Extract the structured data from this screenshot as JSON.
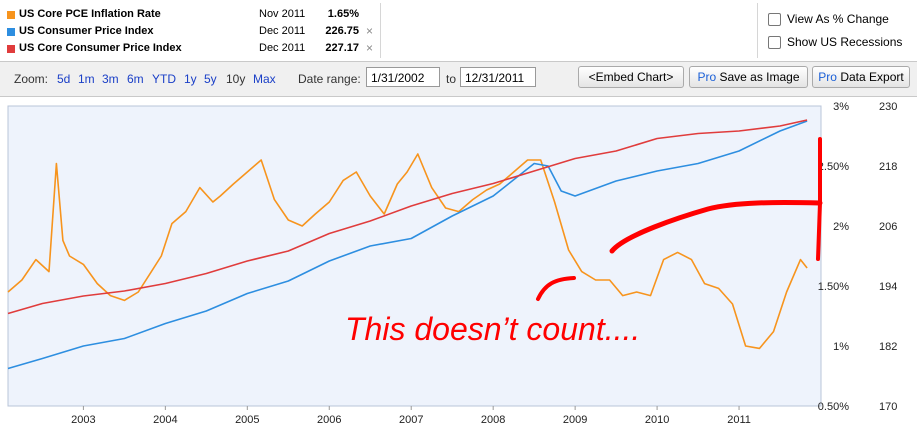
{
  "legend": {
    "series": [
      {
        "name": "US Core PCE Inflation Rate",
        "date": "Nov 2011",
        "value": "1.65%",
        "color": "#f7941d",
        "removable": false
      },
      {
        "name": "US Consumer Price Index",
        "date": "Dec 2011",
        "value": "226.75",
        "color": "#2d8ee0",
        "removable": true
      },
      {
        "name": "US Core Consumer Price Index",
        "date": "Dec 2011",
        "value": "227.17",
        "color": "#e03c3c",
        "removable": true
      }
    ],
    "close_glyph": "×"
  },
  "options": {
    "view_as_percent": "View As % Change",
    "show_recessions": "Show US Recessions"
  },
  "toolbar": {
    "zoom_label": "Zoom:",
    "zoom_options": [
      "5d",
      "1m",
      "3m",
      "6m",
      "YTD",
      "1y",
      "5y",
      "10y",
      "Max"
    ],
    "zoom_active": "10y",
    "date_range_label": "Date range:",
    "start_date": "1/31/2002",
    "to_label": "to",
    "end_date": "12/31/2011",
    "embed_button": "<Embed Chart>",
    "save_pro": "Pro",
    "save_label": "Save as Image",
    "export_pro": "Pro",
    "export_label": "Data Export"
  },
  "annotation": {
    "text": "This doesn’t count....",
    "color": "#ff0000"
  },
  "chart_data": {
    "type": "line",
    "x_tick_labels": [
      "2003",
      "2004",
      "2005",
      "2006",
      "2007",
      "2008",
      "2009",
      "2010",
      "2011"
    ],
    "xlim": [
      2002.08,
      2012.0
    ],
    "y_left": {
      "ticks": [
        "3%",
        "2.50%",
        "2%",
        "1.50%",
        "1%",
        "0.50%"
      ],
      "ylim": [
        0.5,
        3.0
      ]
    },
    "y_right": {
      "ticks": [
        "230",
        "218",
        "206",
        "194",
        "182",
        "170"
      ],
      "ylim": [
        170,
        230
      ]
    },
    "grid": false,
    "background": "#eef3fc",
    "series": [
      {
        "name": "US Core PCE Inflation Rate",
        "axis": "left",
        "color": "#f7941d",
        "x": [
          2002.08,
          2002.25,
          2002.42,
          2002.58,
          2002.67,
          2002.75,
          2002.83,
          2003.0,
          2003.17,
          2003.33,
          2003.5,
          2003.67,
          2003.83,
          2003.95,
          2004.08,
          2004.25,
          2004.42,
          2004.58,
          2004.67,
          2004.83,
          2005.0,
          2005.17,
          2005.33,
          2005.5,
          2005.67,
          2005.83,
          2006.0,
          2006.17,
          2006.33,
          2006.5,
          2006.67,
          2006.83,
          2006.95,
          2007.08,
          2007.25,
          2007.42,
          2007.58,
          2007.75,
          2007.92,
          2008.08,
          2008.25,
          2008.42,
          2008.58,
          2008.75,
          2008.92,
          2009.08,
          2009.25,
          2009.42,
          2009.58,
          2009.75,
          2009.92,
          2010.08,
          2010.25,
          2010.42,
          2010.58,
          2010.75,
          2010.92,
          2011.08,
          2011.25,
          2011.42,
          2011.58,
          2011.75,
          2011.83
        ],
        "values": [
          1.45,
          1.55,
          1.72,
          1.62,
          2.52,
          1.88,
          1.75,
          1.68,
          1.52,
          1.42,
          1.38,
          1.45,
          1.62,
          1.75,
          2.02,
          2.12,
          2.32,
          2.2,
          2.25,
          2.35,
          2.45,
          2.55,
          2.22,
          2.05,
          2.0,
          2.1,
          2.2,
          2.38,
          2.45,
          2.25,
          2.1,
          2.35,
          2.45,
          2.6,
          2.32,
          2.15,
          2.12,
          2.22,
          2.3,
          2.35,
          2.45,
          2.55,
          2.55,
          2.2,
          1.8,
          1.62,
          1.55,
          1.55,
          1.42,
          1.45,
          1.42,
          1.72,
          1.78,
          1.72,
          1.52,
          1.48,
          1.35,
          1.0,
          0.98,
          1.12,
          1.45,
          1.72,
          1.65
        ]
      },
      {
        "name": "US Consumer Price Index",
        "axis": "right",
        "color": "#2d8ee0",
        "x": [
          2002.08,
          2002.5,
          2003.0,
          2003.5,
          2004.0,
          2004.5,
          2005.0,
          2005.5,
          2006.0,
          2006.5,
          2007.0,
          2007.5,
          2008.0,
          2008.5,
          2008.67,
          2008.83,
          2009.0,
          2009.5,
          2010.0,
          2010.5,
          2011.0,
          2011.5,
          2011.83
        ],
        "values": [
          177.5,
          179.5,
          182.0,
          183.5,
          186.5,
          189.0,
          192.5,
          195.0,
          199.0,
          202.0,
          203.5,
          208.0,
          212.0,
          218.5,
          218.0,
          213.0,
          212.0,
          215.0,
          217.0,
          218.5,
          221.0,
          225.0,
          227.0
        ]
      },
      {
        "name": "US Core Consumer Price Index",
        "axis": "right",
        "color": "#e03c3c",
        "x": [
          2002.08,
          2002.5,
          2003.0,
          2003.5,
          2004.0,
          2004.5,
          2005.0,
          2005.5,
          2006.0,
          2006.5,
          2007.0,
          2007.5,
          2008.0,
          2008.5,
          2009.0,
          2009.5,
          2010.0,
          2010.5,
          2011.0,
          2011.5,
          2011.83
        ],
        "values": [
          188.5,
          190.5,
          192.0,
          193.0,
          194.5,
          196.5,
          199.0,
          201.0,
          204.5,
          207.0,
          210.0,
          212.5,
          214.5,
          217.0,
          219.5,
          221.0,
          223.5,
          224.5,
          225.0,
          226.0,
          227.2
        ]
      }
    ]
  }
}
